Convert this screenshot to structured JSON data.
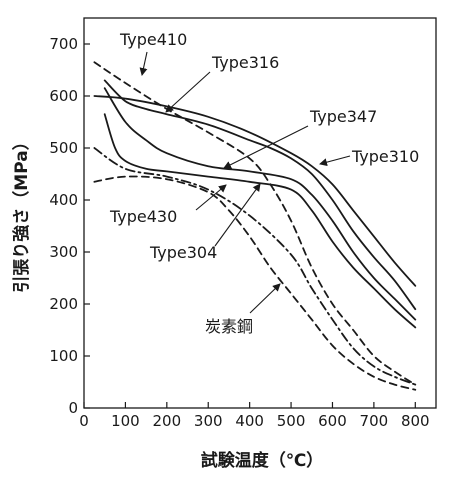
{
  "chart_data": {
    "type": "line",
    "title": "",
    "xlabel": "試験温度（℃）",
    "ylabel": "引張り強さ（MPa）",
    "xlim": [
      0,
      850
    ],
    "ylim": [
      0,
      750
    ],
    "xticks": [
      0,
      100,
      200,
      300,
      400,
      500,
      600,
      700,
      800
    ],
    "yticks": [
      0,
      100,
      200,
      300,
      400,
      500,
      600,
      700
    ],
    "grid": false,
    "legend": "none (inline labels with leader arrows)",
    "series": [
      {
        "name": "Type410",
        "style": "dashed",
        "x": [
          25,
          100,
          200,
          300,
          400,
          450,
          500,
          550,
          600,
          650,
          700,
          750,
          800
        ],
        "y": [
          665,
          625,
          575,
          530,
          480,
          430,
          360,
          270,
          200,
          150,
          100,
          70,
          45
        ]
      },
      {
        "name": "Type316",
        "style": "solid",
        "x": [
          50,
          100,
          150,
          200,
          300,
          400,
          450,
          500,
          550,
          600,
          650,
          700,
          750,
          800
        ],
        "y": [
          630,
          590,
          575,
          565,
          545,
          515,
          500,
          480,
          450,
          400,
          340,
          290,
          245,
          190
        ]
      },
      {
        "name": "Type347",
        "style": "solid",
        "x": [
          50,
          100,
          150,
          200,
          300,
          400,
          500,
          550,
          600,
          650,
          700,
          750,
          800
        ],
        "y": [
          615,
          550,
          515,
          490,
          465,
          455,
          440,
          410,
          360,
          300,
          250,
          210,
          170
        ]
      },
      {
        "name": "Type310",
        "style": "solid",
        "x": [
          25,
          100,
          200,
          300,
          400,
          500,
          550,
          600,
          650,
          700,
          750,
          800
        ],
        "y": [
          600,
          595,
          580,
          560,
          530,
          490,
          465,
          430,
          380,
          330,
          280,
          235
        ]
      },
      {
        "name": "Type304",
        "style": "solid",
        "x": [
          50,
          75,
          100,
          150,
          200,
          300,
          400,
          500,
          550,
          600,
          650,
          700,
          750,
          800
        ],
        "y": [
          565,
          500,
          475,
          460,
          455,
          445,
          435,
          420,
          380,
          320,
          270,
          230,
          190,
          155
        ]
      },
      {
        "name": "Type430",
        "style": "dash-dot",
        "x": [
          25,
          100,
          200,
          300,
          400,
          500,
          550,
          600,
          650,
          700,
          750,
          800
        ],
        "y": [
          500,
          460,
          445,
          420,
          370,
          295,
          230,
          170,
          115,
          80,
          60,
          45
        ]
      },
      {
        "name": "炭素鋼",
        "style": "dashed",
        "x": [
          25,
          100,
          200,
          300,
          350,
          400,
          450,
          500,
          550,
          600,
          650,
          700,
          750,
          800
        ],
        "y": [
          435,
          445,
          440,
          415,
          380,
          330,
          270,
          220,
          170,
          120,
          85,
          60,
          45,
          35
        ]
      }
    ]
  }
}
